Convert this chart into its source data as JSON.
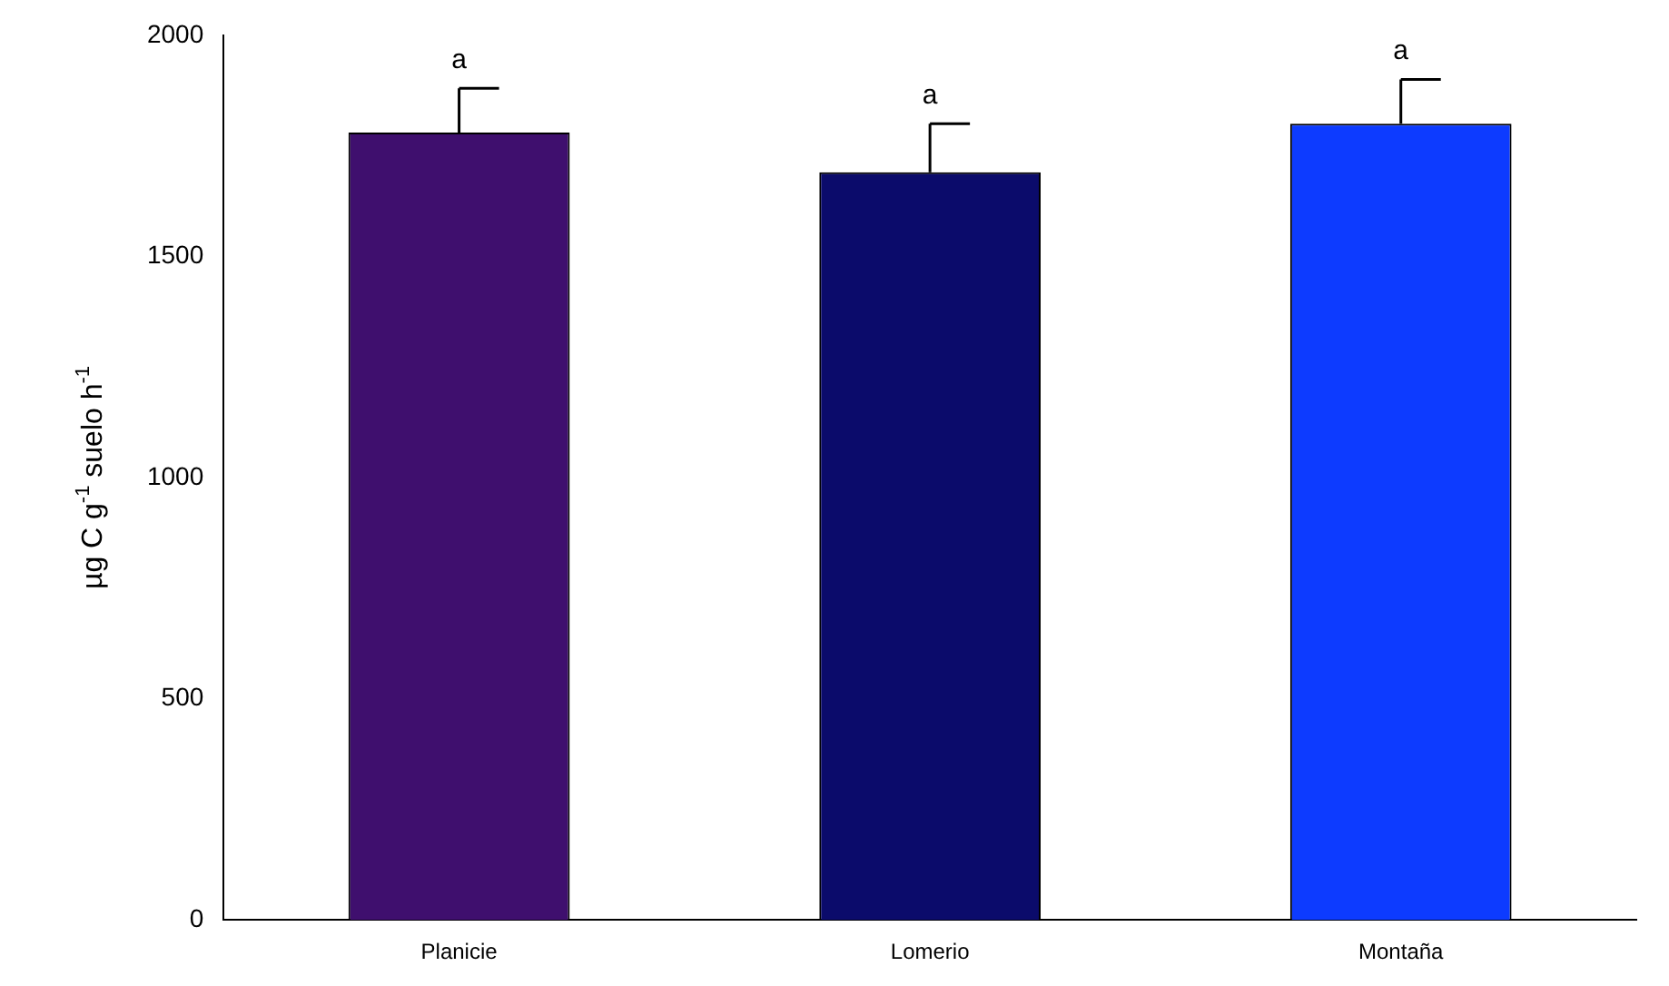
{
  "chart_data": {
    "type": "bar",
    "categories": [
      "Planicie",
      "Lomerio",
      "Montaña"
    ],
    "values": [
      1780,
      1690,
      1800
    ],
    "colors": [
      "#3f0f6e",
      "#0b0b6b",
      "#0d3bff"
    ],
    "errors": [
      [
        1780,
        1880
      ],
      [
        1690,
        1800
      ],
      [
        1800,
        1900
      ]
    ],
    "ylabel": "µg C g$^{-1}$ suelo h$^{-1}$",
    "ylim": [
      0,
      2000
    ],
    "yticks": [
      0,
      500,
      1000,
      1500,
      2000
    ],
    "annotations": [
      {
        "text": "a",
        "x": "Planicie",
        "y": 1880
      },
      {
        "text": "a",
        "x": "Lomerio",
        "y": 1800
      },
      {
        "text": "a",
        "x": "Montaña",
        "y": 1900
      }
    ],
    "grid": false,
    "legend": false
  }
}
